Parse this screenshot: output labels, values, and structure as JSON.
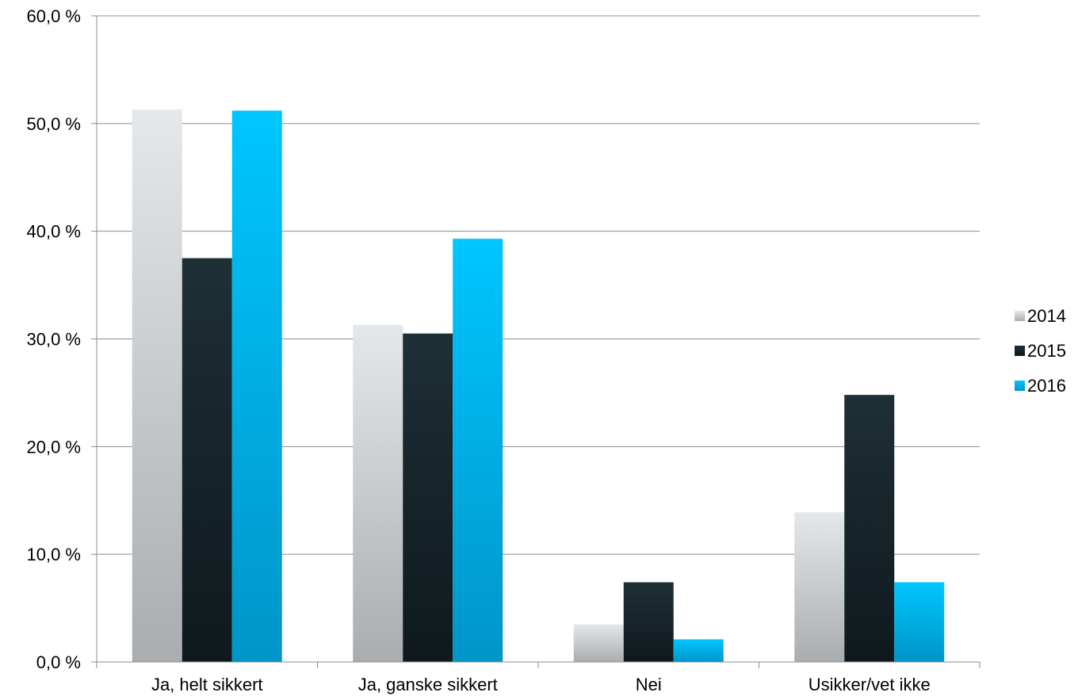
{
  "chart_data": {
    "type": "bar",
    "categories": [
      "Ja, helt sikkert",
      "Ja, ganske sikkert",
      "Nei",
      "Usikker/vet ikke"
    ],
    "series": [
      {
        "name": "2014",
        "values": [
          51.3,
          31.3,
          3.5,
          13.9
        ],
        "color": "#dfe3e5"
      },
      {
        "name": "2015",
        "values": [
          37.5,
          30.5,
          7.4,
          24.8
        ],
        "color": "#1a2a30"
      },
      {
        "name": "2016",
        "values": [
          51.2,
          39.3,
          2.1,
          7.4
        ],
        "color": "#00bfef"
      }
    ],
    "ylim": [
      0,
      60
    ],
    "yticks": [
      0,
      10,
      20,
      30,
      40,
      50,
      60
    ],
    "ytick_labels": [
      "0,0 %",
      "10,0 %",
      "20,0 %",
      "30,0 %",
      "40,0 %",
      "50,0 %",
      "60,0 %"
    ],
    "title": "",
    "xlabel": "",
    "ylabel": "",
    "grid": true,
    "legend": "right"
  }
}
